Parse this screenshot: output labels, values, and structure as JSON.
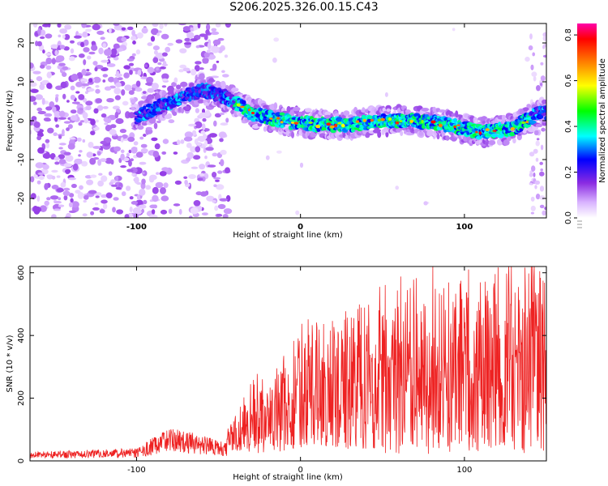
{
  "title": "S206.2025.326.00.15.C43",
  "chart_data": [
    {
      "type": "heatmap",
      "xlabel": "Height of straight line (km)",
      "ylabel": "Frequency (Hz)",
      "xlim": [
        -165,
        150
      ],
      "ylim": [
        -25,
        25
      ],
      "xticks": [
        -100,
        0,
        100
      ],
      "yticks": [
        -20,
        -10,
        0,
        10,
        20
      ],
      "colorbar": {
        "label": "Normalized spectral amplitude",
        "range": [
          0.0,
          0.85
        ],
        "ticks": [
          0.0,
          0.2,
          0.4,
          0.6,
          0.8
        ],
        "colors": [
          "#ffffff",
          "#d9b3ff",
          "#8a2be2",
          "#0000ff",
          "#00ffff",
          "#00ff00",
          "#ffff00",
          "#ff8000",
          "#ff0000",
          "#ff00aa"
        ]
      },
      "ridge": {
        "description_points_x": [
          -100,
          -60,
          -45,
          -30,
          -10,
          10,
          30,
          50,
          70,
          90,
          110,
          130,
          145
        ],
        "description_points_y": [
          1,
          8,
          6,
          2,
          0,
          -1,
          -1,
          0,
          0,
          -1,
          -3,
          -2,
          2
        ]
      }
    },
    {
      "type": "line",
      "xlabel": "Height of straight line (km)",
      "ylabel": "SNR (10 * v/v)",
      "xlim": [
        -165,
        150
      ],
      "ylim": [
        0,
        620
      ],
      "xticks": [
        -100,
        0,
        100
      ],
      "yticks": [
        0,
        200,
        400,
        600
      ],
      "color": "#ee2222",
      "envelope_x": [
        -165,
        -100,
        -80,
        -45,
        -38,
        -25,
        -20,
        0,
        20,
        40,
        60,
        80,
        100,
        120,
        150
      ],
      "envelope_y": [
        30,
        40,
        110,
        60,
        140,
        250,
        200,
        420,
        400,
        500,
        560,
        580,
        560,
        590,
        600
      ]
    }
  ]
}
